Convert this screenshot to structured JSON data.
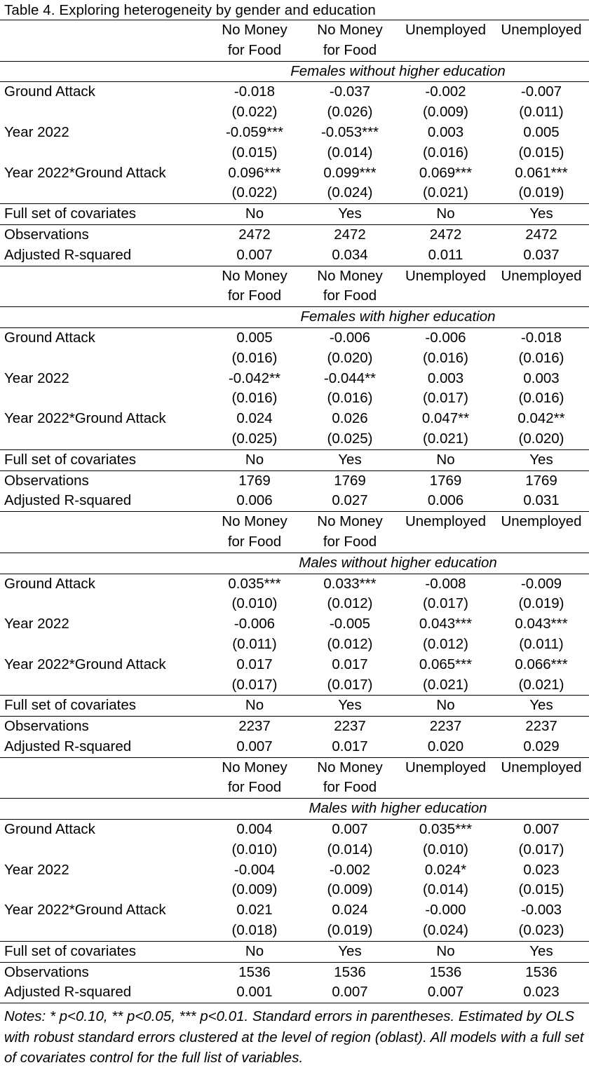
{
  "title": "Table 4. Exploring heterogeneity by gender and education",
  "column_headers": [
    [
      "No Money",
      "for Food"
    ],
    [
      "No Money",
      "for Food"
    ],
    [
      "Unemployed",
      ""
    ],
    [
      "Unemployed",
      ""
    ]
  ],
  "panels": [
    {
      "title": "Females without higher education",
      "rows": [
        {
          "label": "Ground Attack",
          "coef": [
            "-0.018",
            "-0.037",
            "-0.002",
            "-0.007"
          ],
          "se": [
            "(0.022)",
            "(0.026)",
            "(0.009)",
            "(0.011)"
          ]
        },
        {
          "label": "Year 2022",
          "coef": [
            "-0.059***",
            "-0.053***",
            "0.003",
            "0.005"
          ],
          "se": [
            "(0.015)",
            "(0.014)",
            "(0.016)",
            "(0.015)"
          ]
        },
        {
          "label": "Year 2022*Ground Attack",
          "coef": [
            "0.096***",
            "0.099***",
            "0.069***",
            "0.061***"
          ],
          "se": [
            "(0.022)",
            "(0.024)",
            "(0.021)",
            "(0.019)"
          ]
        }
      ],
      "stats": [
        {
          "label": "Full set of covariates",
          "values": [
            "No",
            "Yes",
            "No",
            "Yes"
          ]
        },
        {
          "label": "Observations",
          "values": [
            "2472",
            "2472",
            "2472",
            "2472"
          ]
        },
        {
          "label": "Adjusted R-squared",
          "values": [
            "0.007",
            "0.034",
            "0.011",
            "0.037"
          ]
        }
      ]
    },
    {
      "title": "Females with higher education",
      "rows": [
        {
          "label": "Ground Attack",
          "coef": [
            "0.005",
            "-0.006",
            "-0.006",
            "-0.018"
          ],
          "se": [
            "(0.016)",
            "(0.020)",
            "(0.016)",
            "(0.016)"
          ]
        },
        {
          "label": "Year 2022",
          "coef": [
            "-0.042**",
            "-0.044**",
            "0.003",
            "0.003"
          ],
          "se": [
            "(0.016)",
            "(0.016)",
            "(0.017)",
            "(0.016)"
          ]
        },
        {
          "label": "Year 2022*Ground Attack",
          "coef": [
            "0.024",
            "0.026",
            "0.047**",
            "0.042**"
          ],
          "se": [
            "(0.025)",
            "(0.025)",
            "(0.021)",
            "(0.020)"
          ]
        }
      ],
      "stats": [
        {
          "label": "Full set of covariates",
          "values": [
            "No",
            "Yes",
            "No",
            "Yes"
          ]
        },
        {
          "label": "Observations",
          "values": [
            "1769",
            "1769",
            "1769",
            "1769"
          ]
        },
        {
          "label": "Adjusted R-squared",
          "values": [
            "0.006",
            "0.027",
            "0.006",
            "0.031"
          ]
        }
      ]
    },
    {
      "title": "Males without higher education",
      "rows": [
        {
          "label": "Ground Attack",
          "coef": [
            "0.035***",
            "0.033***",
            "-0.008",
            "-0.009"
          ],
          "se": [
            "(0.010)",
            "(0.012)",
            "(0.017)",
            "(0.019)"
          ]
        },
        {
          "label": "Year 2022",
          "coef": [
            "-0.006",
            "-0.005",
            "0.043***",
            "0.043***"
          ],
          "se": [
            "(0.011)",
            "(0.012)",
            "(0.012)",
            "(0.011)"
          ]
        },
        {
          "label": "Year 2022*Ground Attack",
          "coef": [
            "0.017",
            "0.017",
            "0.065***",
            "0.066***"
          ],
          "se": [
            "(0.017)",
            "(0.017)",
            "(0.021)",
            "(0.021)"
          ]
        }
      ],
      "stats": [
        {
          "label": "Full set of covariates",
          "values": [
            "No",
            "Yes",
            "No",
            "Yes"
          ]
        },
        {
          "label": "Observations",
          "values": [
            "2237",
            "2237",
            "2237",
            "2237"
          ]
        },
        {
          "label": "Adjusted R-squared",
          "values": [
            "0.007",
            "0.017",
            "0.020",
            "0.029"
          ]
        }
      ]
    },
    {
      "title": "Males with higher education",
      "rows": [
        {
          "label": "Ground Attack",
          "coef": [
            "0.004",
            "0.007",
            "0.035***",
            "0.007"
          ],
          "se": [
            "(0.010)",
            "(0.014)",
            "(0.010)",
            "(0.017)"
          ]
        },
        {
          "label": "Year 2022",
          "coef": [
            "-0.004",
            "-0.002",
            "0.024*",
            "0.023"
          ],
          "se": [
            "(0.009)",
            "(0.009)",
            "(0.014)",
            "(0.015)"
          ]
        },
        {
          "label": "Year 2022*Ground Attack",
          "coef": [
            "0.021",
            "0.024",
            "-0.000",
            "-0.003"
          ],
          "se": [
            "(0.018)",
            "(0.019)",
            "(0.024)",
            "(0.023)"
          ]
        }
      ],
      "stats": [
        {
          "label": "Full set of covariates",
          "values": [
            "No",
            "Yes",
            "No",
            "Yes"
          ]
        },
        {
          "label": "Observations",
          "values": [
            "1536",
            "1536",
            "1536",
            "1536"
          ]
        },
        {
          "label": "Adjusted R-squared",
          "values": [
            "0.001",
            "0.007",
            "0.007",
            "0.023"
          ]
        }
      ]
    }
  ],
  "notes": "Notes: * p<0.10, ** p<0.05, *** p<0.01. Standard errors in parentheses. Estimated by OLS with robust standard errors clustered at the level of region (oblast). All models with a full set of covariates control for the full list of variables."
}
